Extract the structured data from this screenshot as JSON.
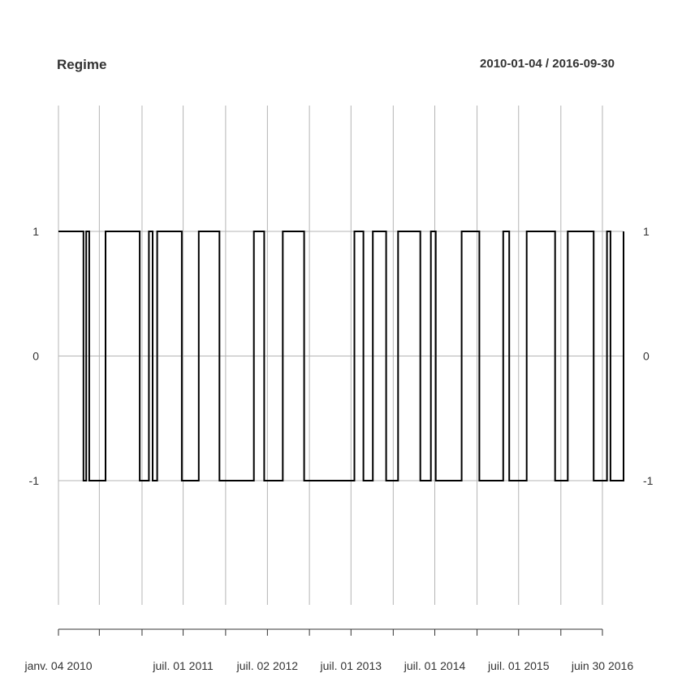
{
  "chart_data": {
    "type": "line",
    "title": "Regime",
    "date_range": "2010-01-04 / 2016-09-30",
    "xlabel": "",
    "ylabel": "",
    "ylim": [
      -2,
      2
    ],
    "y_ticks": [
      1,
      0,
      -1
    ],
    "y_tick_labels": [
      "1",
      "0",
      "-1"
    ],
    "x_tick_labels": [
      {
        "date": "2010-01-04",
        "label": "janv. 04 2010"
      },
      {
        "date": "2011-07-01",
        "label": "juil. 01 2011"
      },
      {
        "date": "2012-07-02",
        "label": "juil. 02 2012"
      },
      {
        "date": "2013-07-01",
        "label": "juil. 01 2013"
      },
      {
        "date": "2014-07-01",
        "label": "juil. 01 2014"
      },
      {
        "date": "2015-07-01",
        "label": "juil. 01 2015"
      },
      {
        "date": "2016-06-30",
        "label": "juin 30 2016"
      }
    ],
    "minor_tick_dates": [
      "2010-07-01",
      "2011-01-03",
      "2012-01-02",
      "2013-01-01",
      "2014-01-01",
      "2015-01-01",
      "2016-01-01"
    ],
    "grid": true,
    "series_style": {
      "color": "#000000",
      "step": true
    },
    "series": [
      {
        "x": [
          "2010-01-04",
          "2010-04-23",
          "2010-05-05",
          "2010-05-18",
          "2010-07-28",
          "2010-12-24",
          "2011-02-02",
          "2011-02-18",
          "2011-03-10",
          "2011-06-25",
          "2011-09-07",
          "2011-12-06",
          "2012-05-04",
          "2012-06-18",
          "2012-09-07",
          "2012-12-09",
          "2013-07-16",
          "2013-08-24",
          "2013-10-04",
          "2013-12-01",
          "2014-01-22",
          "2014-04-29",
          "2014-06-14",
          "2014-07-05",
          "2014-10-26",
          "2015-01-11",
          "2015-04-25",
          "2015-05-21",
          "2015-08-05",
          "2015-12-07",
          "2016-01-31",
          "2016-05-23",
          "2016-07-20",
          "2016-08-04",
          "2016-09-30"
        ],
        "values": [
          1,
          -1,
          1,
          -1,
          1,
          -1,
          1,
          -1,
          1,
          -1,
          1,
          -1,
          1,
          -1,
          1,
          -1,
          1,
          -1,
          1,
          -1,
          1,
          -1,
          1,
          -1,
          1,
          -1,
          1,
          -1,
          1,
          -1,
          1,
          -1,
          1,
          -1,
          1
        ]
      }
    ]
  }
}
